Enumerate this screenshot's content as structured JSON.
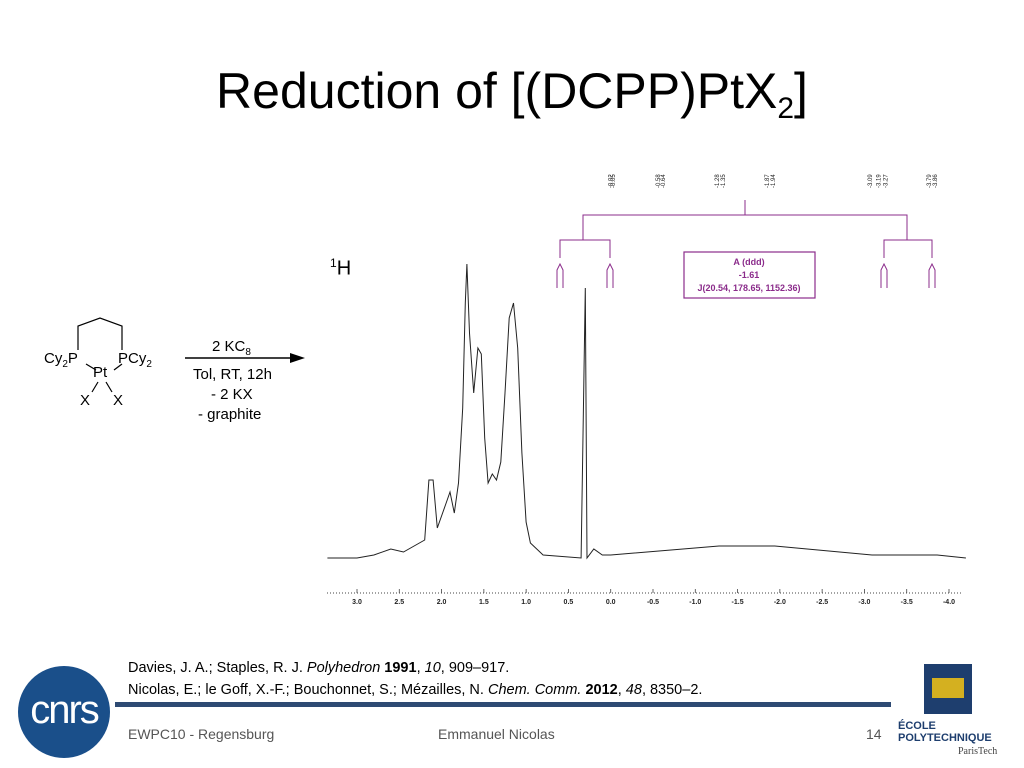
{
  "slide": {
    "title_main": "Reduction of [(DCPP)PtX",
    "title_sub": "2",
    "title_end": "]"
  },
  "scheme": {
    "cy2p_a": "Cy",
    "cy2p_b": "2",
    "cy2p_c": "P",
    "pcy2_a": "PCy",
    "pcy2_b": "2",
    "pt": "Pt",
    "x1": "X",
    "x2": "X",
    "reagent_a": "2 KC",
    "reagent_b": "8",
    "cond1": "Tol, RT, 12h",
    "cond2": "- 2 KX",
    "cond3": "- graphite"
  },
  "nucleus": {
    "sup": "1",
    "label": "H"
  },
  "chart_data": {
    "type": "line",
    "title": "",
    "xlabel": "",
    "ylabel": "",
    "xlim": [
      3.35,
      -4.2
    ],
    "x_ticks": [
      "3.0",
      "2.5",
      "2.0",
      "1.5",
      "1.0",
      "0.5",
      "0.0",
      "-0.5",
      "-1.0",
      "-1.5",
      "-2.0",
      "-2.5",
      "-3.0",
      "-3.5",
      "-4.0"
    ],
    "peak_labels": [
      "-0.64",
      "-0.58",
      "-0.05",
      "-0.02",
      "-1.28",
      "-1.35",
      "-1.87",
      "-1.94",
      "-3.09",
      "-3.19",
      "-3.27",
      "-3.79",
      "-3.86"
    ],
    "multiplet": {
      "line1": "A (ddd)",
      "line2": "-1.61",
      "line3": "J(20.54, 178.65, 1152.36)"
    },
    "series": [
      {
        "points": [
          [
            3.35,
            0.0
          ],
          [
            3.0,
            0.0
          ],
          [
            2.8,
            0.01
          ],
          [
            2.6,
            0.03
          ],
          [
            2.45,
            0.02
          ],
          [
            2.2,
            0.06
          ],
          [
            2.15,
            0.26
          ],
          [
            2.1,
            0.26
          ],
          [
            2.05,
            0.1
          ],
          [
            1.95,
            0.18
          ],
          [
            1.9,
            0.22
          ],
          [
            1.85,
            0.15
          ],
          [
            1.8,
            0.25
          ],
          [
            1.75,
            0.5
          ],
          [
            1.72,
            0.85
          ],
          [
            1.7,
            0.98
          ],
          [
            1.67,
            0.75
          ],
          [
            1.62,
            0.55
          ],
          [
            1.57,
            0.7
          ],
          [
            1.53,
            0.68
          ],
          [
            1.49,
            0.4
          ],
          [
            1.45,
            0.25
          ],
          [
            1.4,
            0.28
          ],
          [
            1.35,
            0.26
          ],
          [
            1.3,
            0.32
          ],
          [
            1.25,
            0.55
          ],
          [
            1.2,
            0.8
          ],
          [
            1.15,
            0.85
          ],
          [
            1.1,
            0.7
          ],
          [
            1.05,
            0.35
          ],
          [
            1.0,
            0.12
          ],
          [
            0.95,
            0.05
          ],
          [
            0.8,
            0.01
          ],
          [
            0.35,
            0.0
          ],
          [
            0.3,
            0.9
          ],
          [
            0.28,
            0.0
          ],
          [
            0.2,
            0.03
          ],
          [
            0.1,
            0.01
          ],
          [
            0.0,
            0.01
          ],
          [
            -1.28,
            0.04
          ],
          [
            -1.35,
            0.04
          ],
          [
            -1.87,
            0.04
          ],
          [
            -1.94,
            0.04
          ],
          [
            -3.09,
            0.01
          ],
          [
            -3.19,
            0.01
          ],
          [
            -3.79,
            0.01
          ],
          [
            -3.86,
            0.01
          ],
          [
            -4.2,
            0.0
          ]
        ]
      }
    ]
  },
  "references": [
    {
      "authors": "Davies, J. A.; Staples, R. J. ",
      "journal": "Polyhedron",
      "year": "1991",
      "volume": "10",
      "pages": ", 909–917."
    },
    {
      "authors": "Nicolas, E.; le Goff, X.-F.; Bouchonnet, S.; Mézailles, N. ",
      "journal": "Chem. Comm.",
      "year": "2012",
      "volume": "48",
      "pages": ", 8350–2."
    }
  ],
  "footer": {
    "left": "EWPC10 - Regensburg",
    "center": "Emmanuel Nicolas",
    "page": "14"
  },
  "logos": {
    "cnrs": "cnrs",
    "poly1": "ÉCOLE",
    "poly2": "POLYTECHNIQUE",
    "poly3": "ParisTech"
  },
  "colors": {
    "multiplet": "#8b2c8b",
    "footer_bar": "#2e4a73"
  }
}
